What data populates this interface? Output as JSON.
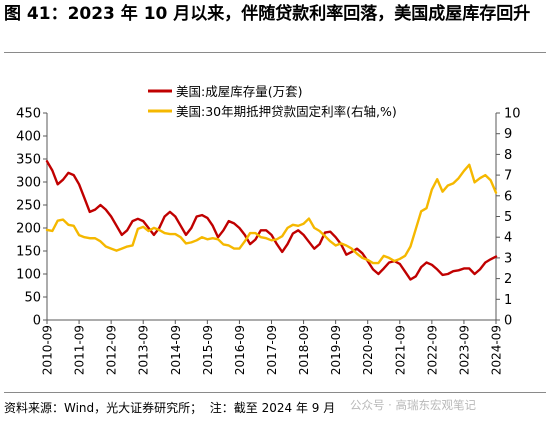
{
  "title": "图 41：2023 年 10 月以来，伴随贷款利率回落，美国成屋库存回升",
  "source": "资料来源：Wind，光大证券研究所；  注：截至 2024 年 9 月",
  "watermark": "公众号 · 高瑞东宏观笔记",
  "colors": {
    "inventory": "#c00000",
    "mortgage": "#f5b800",
    "axis": "#595959"
  },
  "chart_data": {
    "type": "line",
    "title": "",
    "xlabel": "",
    "left_axis": {
      "ylim": [
        0,
        450
      ],
      "ticks": [
        0,
        50,
        100,
        150,
        200,
        250,
        300,
        350,
        400,
        450
      ]
    },
    "right_axis": {
      "ylim": [
        0,
        10
      ],
      "ticks": [
        0,
        1,
        2,
        3,
        4,
        5,
        6,
        7,
        8,
        9,
        10
      ]
    },
    "x_tick_labels": [
      "2010-09",
      "2011-09",
      "2012-09",
      "2013-09",
      "2014-09",
      "2015-09",
      "2016-09",
      "2017-09",
      "2018-09",
      "2019-09",
      "2020-09",
      "2021-09",
      "2022-09",
      "2023-09",
      "2024-09"
    ],
    "x_range": [
      "2010-09",
      "2024-09"
    ],
    "grid": false,
    "legend_position": "top-left",
    "series": [
      {
        "name": "美国:成屋库存量(万套)",
        "axis": "left",
        "color": "#c00000",
        "points": [
          [
            "2010-09",
            345
          ],
          [
            "2010-11",
            325
          ],
          [
            "2011-01",
            295
          ],
          [
            "2011-03",
            305
          ],
          [
            "2011-05",
            320
          ],
          [
            "2011-07",
            315
          ],
          [
            "2011-09",
            295
          ],
          [
            "2011-11",
            265
          ],
          [
            "2012-01",
            235
          ],
          [
            "2012-03",
            240
          ],
          [
            "2012-05",
            250
          ],
          [
            "2012-07",
            240
          ],
          [
            "2012-09",
            225
          ],
          [
            "2012-11",
            205
          ],
          [
            "2013-01",
            185
          ],
          [
            "2013-03",
            195
          ],
          [
            "2013-05",
            215
          ],
          [
            "2013-07",
            220
          ],
          [
            "2013-09",
            215
          ],
          [
            "2013-11",
            200
          ],
          [
            "2014-01",
            185
          ],
          [
            "2014-03",
            200
          ],
          [
            "2014-05",
            225
          ],
          [
            "2014-07",
            235
          ],
          [
            "2014-09",
            225
          ],
          [
            "2014-11",
            205
          ],
          [
            "2015-01",
            185
          ],
          [
            "2015-03",
            200
          ],
          [
            "2015-05",
            225
          ],
          [
            "2015-07",
            228
          ],
          [
            "2015-09",
            222
          ],
          [
            "2015-11",
            205
          ],
          [
            "2016-01",
            180
          ],
          [
            "2016-03",
            195
          ],
          [
            "2016-05",
            215
          ],
          [
            "2016-07",
            210
          ],
          [
            "2016-09",
            200
          ],
          [
            "2016-11",
            185
          ],
          [
            "2017-01",
            165
          ],
          [
            "2017-03",
            175
          ],
          [
            "2017-05",
            195
          ],
          [
            "2017-07",
            195
          ],
          [
            "2017-09",
            185
          ],
          [
            "2017-11",
            165
          ],
          [
            "2018-01",
            148
          ],
          [
            "2018-03",
            165
          ],
          [
            "2018-05",
            188
          ],
          [
            "2018-07",
            195
          ],
          [
            "2018-09",
            185
          ],
          [
            "2018-11",
            170
          ],
          [
            "2019-01",
            155
          ],
          [
            "2019-03",
            165
          ],
          [
            "2019-05",
            190
          ],
          [
            "2019-07",
            192
          ],
          [
            "2019-09",
            180
          ],
          [
            "2019-11",
            165
          ],
          [
            "2020-01",
            142
          ],
          [
            "2020-03",
            148
          ],
          [
            "2020-05",
            155
          ],
          [
            "2020-07",
            145
          ],
          [
            "2020-09",
            128
          ],
          [
            "2020-11",
            110
          ],
          [
            "2021-01",
            100
          ],
          [
            "2021-03",
            112
          ],
          [
            "2021-05",
            125
          ],
          [
            "2021-07",
            128
          ],
          [
            "2021-09",
            122
          ],
          [
            "2021-11",
            105
          ],
          [
            "2022-01",
            88
          ],
          [
            "2022-03",
            95
          ],
          [
            "2022-05",
            115
          ],
          [
            "2022-07",
            125
          ],
          [
            "2022-09",
            120
          ],
          [
            "2022-11",
            110
          ],
          [
            "2023-01",
            98
          ],
          [
            "2023-03",
            100
          ],
          [
            "2023-05",
            106
          ],
          [
            "2023-07",
            108
          ],
          [
            "2023-09",
            112
          ],
          [
            "2023-11",
            112
          ],
          [
            "2024-01",
            100
          ],
          [
            "2024-03",
            110
          ],
          [
            "2024-05",
            125
          ],
          [
            "2024-07",
            132
          ],
          [
            "2024-09",
            138
          ]
        ]
      },
      {
        "name": "美国:30年期抵押贷款固定利率(右轴,%)",
        "axis": "right",
        "color": "#f5b800",
        "points": [
          [
            "2010-09",
            4.35
          ],
          [
            "2010-11",
            4.3
          ],
          [
            "2011-01",
            4.8
          ],
          [
            "2011-03",
            4.85
          ],
          [
            "2011-05",
            4.6
          ],
          [
            "2011-07",
            4.55
          ],
          [
            "2011-09",
            4.1
          ],
          [
            "2011-11",
            4.0
          ],
          [
            "2012-01",
            3.95
          ],
          [
            "2012-03",
            3.95
          ],
          [
            "2012-05",
            3.8
          ],
          [
            "2012-07",
            3.55
          ],
          [
            "2012-09",
            3.45
          ],
          [
            "2012-11",
            3.35
          ],
          [
            "2013-01",
            3.45
          ],
          [
            "2013-03",
            3.55
          ],
          [
            "2013-05",
            3.6
          ],
          [
            "2013-07",
            4.4
          ],
          [
            "2013-09",
            4.5
          ],
          [
            "2013-11",
            4.3
          ],
          [
            "2014-01",
            4.45
          ],
          [
            "2014-03",
            4.35
          ],
          [
            "2014-05",
            4.2
          ],
          [
            "2014-07",
            4.15
          ],
          [
            "2014-09",
            4.15
          ],
          [
            "2014-11",
            4.0
          ],
          [
            "2015-01",
            3.7
          ],
          [
            "2015-03",
            3.75
          ],
          [
            "2015-05",
            3.85
          ],
          [
            "2015-07",
            4.0
          ],
          [
            "2015-09",
            3.9
          ],
          [
            "2015-11",
            3.95
          ],
          [
            "2016-01",
            3.9
          ],
          [
            "2016-03",
            3.65
          ],
          [
            "2016-05",
            3.6
          ],
          [
            "2016-07",
            3.45
          ],
          [
            "2016-09",
            3.45
          ],
          [
            "2016-11",
            3.8
          ],
          [
            "2017-01",
            4.2
          ],
          [
            "2017-03",
            4.2
          ],
          [
            "2017-05",
            4.0
          ],
          [
            "2017-07",
            3.95
          ],
          [
            "2017-09",
            3.85
          ],
          [
            "2017-11",
            3.9
          ],
          [
            "2018-01",
            4.05
          ],
          [
            "2018-03",
            4.45
          ],
          [
            "2018-05",
            4.6
          ],
          [
            "2018-07",
            4.55
          ],
          [
            "2018-09",
            4.65
          ],
          [
            "2018-11",
            4.9
          ],
          [
            "2019-01",
            4.45
          ],
          [
            "2019-03",
            4.3
          ],
          [
            "2019-05",
            4.05
          ],
          [
            "2019-07",
            3.8
          ],
          [
            "2019-09",
            3.6
          ],
          [
            "2019-11",
            3.7
          ],
          [
            "2020-01",
            3.6
          ],
          [
            "2020-03",
            3.45
          ],
          [
            "2020-05",
            3.2
          ],
          [
            "2020-07",
            3.0
          ],
          [
            "2020-09",
            2.9
          ],
          [
            "2020-11",
            2.75
          ],
          [
            "2021-01",
            2.75
          ],
          [
            "2021-03",
            3.1
          ],
          [
            "2021-05",
            3.0
          ],
          [
            "2021-07",
            2.85
          ],
          [
            "2021-09",
            2.95
          ],
          [
            "2021-11",
            3.1
          ],
          [
            "2022-01",
            3.55
          ],
          [
            "2022-03",
            4.4
          ],
          [
            "2022-05",
            5.25
          ],
          [
            "2022-07",
            5.4
          ],
          [
            "2022-09",
            6.3
          ],
          [
            "2022-11",
            6.8
          ],
          [
            "2023-01",
            6.2
          ],
          [
            "2023-03",
            6.5
          ],
          [
            "2023-05",
            6.6
          ],
          [
            "2023-07",
            6.85
          ],
          [
            "2023-09",
            7.2
          ],
          [
            "2023-11",
            7.5
          ],
          [
            "2024-01",
            6.65
          ],
          [
            "2024-03",
            6.85
          ],
          [
            "2024-05",
            7.0
          ],
          [
            "2024-07",
            6.75
          ],
          [
            "2024-09",
            6.15
          ]
        ]
      }
    ]
  }
}
